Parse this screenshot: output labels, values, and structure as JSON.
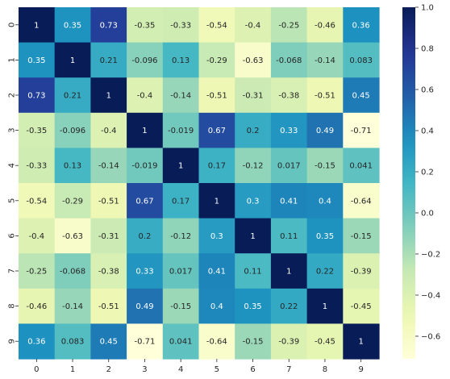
{
  "chart_data": {
    "type": "heatmap",
    "title": "",
    "xlabel": "",
    "ylabel": "",
    "x_categories": [
      "0",
      "1",
      "2",
      "3",
      "4",
      "5",
      "6",
      "7",
      "8",
      "9"
    ],
    "y_categories": [
      "0",
      "1",
      "2",
      "3",
      "4",
      "5",
      "6",
      "7",
      "8",
      "9"
    ],
    "values": [
      [
        1,
        0.35,
        0.73,
        -0.35,
        -0.33,
        -0.54,
        -0.4,
        -0.25,
        -0.46,
        0.36
      ],
      [
        0.35,
        1,
        0.21,
        -0.096,
        0.13,
        -0.29,
        -0.63,
        -0.068,
        -0.14,
        0.083
      ],
      [
        0.73,
        0.21,
        1,
        -0.4,
        -0.14,
        -0.51,
        -0.31,
        -0.38,
        -0.51,
        0.45
      ],
      [
        -0.35,
        -0.096,
        -0.4,
        1,
        -0.019,
        0.67,
        0.2,
        0.33,
        0.49,
        -0.71
      ],
      [
        -0.33,
        0.13,
        -0.14,
        -0.019,
        1,
        0.17,
        -0.12,
        0.017,
        -0.15,
        0.041
      ],
      [
        -0.54,
        -0.29,
        -0.51,
        0.67,
        0.17,
        1,
        0.3,
        0.41,
        0.4,
        -0.64
      ],
      [
        -0.4,
        -0.63,
        -0.31,
        0.2,
        -0.12,
        0.3,
        1,
        0.11,
        0.35,
        -0.15
      ],
      [
        -0.25,
        -0.068,
        -0.38,
        0.33,
        0.017,
        0.41,
        0.11,
        1,
        0.22,
        -0.39
      ],
      [
        -0.46,
        -0.14,
        -0.51,
        0.49,
        -0.15,
        0.4,
        0.35,
        0.22,
        1,
        -0.45
      ],
      [
        0.36,
        0.083,
        0.45,
        -0.71,
        0.041,
        -0.64,
        -0.15,
        -0.39,
        -0.45,
        1
      ]
    ],
    "colormap": "YlGnBu",
    "vmin": -0.71,
    "vmax": 1.0,
    "annotations": true,
    "colorbar": {
      "ticks": [
        -0.6,
        -0.4,
        -0.2,
        0.0,
        0.2,
        0.4,
        0.6,
        0.8,
        1.0
      ],
      "tick_labels": [
        "−0.6",
        "−0.4",
        "−0.2",
        "0.0",
        "0.2",
        "0.4",
        "0.6",
        "0.8",
        "1.0"
      ],
      "placement": "right"
    },
    "grid": false
  }
}
